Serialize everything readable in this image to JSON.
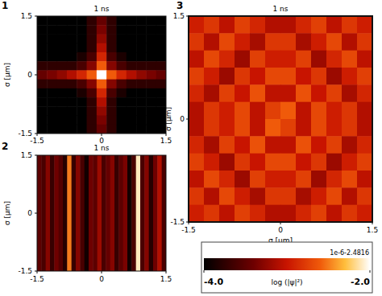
{
  "chart_data": [
    {
      "type": "heatmap",
      "panel_label": "1",
      "title": "1 ns",
      "ylabel": "σ [μm]",
      "xlim": [
        -1.5,
        1.5
      ],
      "ylim": [
        -1.5,
        1.5
      ],
      "xticks": [
        -1.5,
        0,
        1.5
      ],
      "yticks": [
        -1.5,
        0,
        1.5
      ],
      "cells": [
        [
          -4,
          -4,
          -4,
          -4,
          -4,
          -3.75,
          -3.45,
          -3.75,
          -4,
          -4,
          -4,
          -4,
          -4
        ],
        [
          -4,
          -4,
          -4,
          -4,
          -4,
          -3.75,
          -3.35,
          -3.75,
          -4,
          -4,
          -4,
          -4,
          -4
        ],
        [
          -4,
          -4,
          -4,
          -4,
          -4,
          -3.75,
          -3.25,
          -3.75,
          -4,
          -4,
          -4,
          -4,
          -4
        ],
        [
          -4,
          -4,
          -4,
          -4,
          -4,
          -3.75,
          -3.1,
          -3.75,
          -4,
          -4,
          -4,
          -4,
          -4
        ],
        [
          -4,
          -4,
          -4,
          -4,
          -3.85,
          -3.6,
          -2.9,
          -3.6,
          -3.85,
          -4,
          -4,
          -4,
          -4
        ],
        [
          -3.75,
          -3.75,
          -3.75,
          -3.75,
          -3.6,
          -3.3,
          -2.6,
          -3.3,
          -3.6,
          -3.75,
          -3.75,
          -3.75,
          -3.75
        ],
        [
          -3.45,
          -3.35,
          -3.25,
          -3.1,
          -2.9,
          -2.6,
          -2.0,
          -2.6,
          -2.9,
          -3.1,
          -3.25,
          -3.35,
          -3.45
        ],
        [
          -3.75,
          -3.75,
          -3.75,
          -3.75,
          -3.6,
          -3.3,
          -2.6,
          -3.3,
          -3.6,
          -3.75,
          -3.75,
          -3.75,
          -3.75
        ],
        [
          -4,
          -4,
          -4,
          -4,
          -3.85,
          -3.6,
          -2.9,
          -3.6,
          -3.85,
          -4,
          -4,
          -4,
          -4
        ],
        [
          -4,
          -4,
          -4,
          -4,
          -4,
          -3.75,
          -3.1,
          -3.75,
          -4,
          -4,
          -4,
          -4,
          -4
        ],
        [
          -4,
          -4,
          -4,
          -4,
          -4,
          -3.75,
          -3.25,
          -3.75,
          -4,
          -4,
          -4,
          -4,
          -4
        ],
        [
          -4,
          -4,
          -4,
          -4,
          -4,
          -3.75,
          -3.35,
          -3.75,
          -4,
          -4,
          -4,
          -4,
          -4
        ],
        [
          -4,
          -4,
          -4,
          -4,
          -4,
          -3.75,
          -3.45,
          -3.75,
          -4,
          -4,
          -4,
          -4,
          -4
        ]
      ]
    },
    {
      "type": "heatmap",
      "panel_label": "2",
      "title": "1 ns",
      "ylabel": "σ [μm]",
      "xlim": [
        -1.5,
        1.5
      ],
      "ylim": [
        -1.5,
        1.5
      ],
      "xticks": [
        -1.5,
        0,
        1.5
      ],
      "yticks": [
        -1.5,
        0,
        1.5
      ],
      "cells": [
        [
          -3.5,
          -3.6,
          -3.3,
          -3.7,
          -3.4,
          -3.55,
          -3.8,
          -2.5,
          -3.7,
          -3.3,
          -3.6,
          -3.9,
          -3.4,
          -3.5,
          -3.2,
          -3.6,
          -3.45,
          -3.3,
          -3.7,
          -3.5,
          -3.35,
          -3.9,
          -3.6,
          -2.1,
          -3.6,
          -3.3,
          -3.8,
          -3.4,
          -3.1,
          -3.6
        ]
      ]
    },
    {
      "type": "heatmap",
      "panel_label": "3",
      "title": "1 ns",
      "xlabel": "σ [μm]",
      "ylabel": "σ [μm]",
      "xlim": [
        -1.5,
        1.5
      ],
      "ylim": [
        -1.5,
        1.5
      ],
      "xticks": [
        -1.5,
        0,
        1.5
      ],
      "yticks": [
        -1.5,
        0,
        1.5
      ],
      "cells": [
        [
          -2.95,
          -2.8,
          -3.05,
          -2.75,
          -2.9,
          -3.1,
          -3.1,
          -2.9,
          -2.75,
          -3.05,
          -2.8,
          -2.95
        ],
        [
          -2.8,
          -3.1,
          -2.7,
          -2.95,
          -3.15,
          -2.8,
          -2.8,
          -3.15,
          -2.95,
          -2.7,
          -3.1,
          -2.8
        ],
        [
          -3.05,
          -2.7,
          -2.9,
          -3.2,
          -2.75,
          -2.95,
          -2.95,
          -2.75,
          -3.2,
          -2.9,
          -2.7,
          -3.05
        ],
        [
          -2.75,
          -2.95,
          -3.2,
          -2.8,
          -3.0,
          -2.7,
          -2.7,
          -3.0,
          -2.8,
          -3.2,
          -2.95,
          -2.75
        ],
        [
          -2.9,
          -3.15,
          -2.75,
          -3.0,
          -2.65,
          -3.05,
          -3.05,
          -2.65,
          -3.0,
          -2.75,
          -3.15,
          -2.9
        ],
        [
          -3.1,
          -2.8,
          -2.95,
          -2.7,
          -3.05,
          -2.75,
          -2.6,
          -3.05,
          -2.7,
          -2.95,
          -2.8,
          -3.1
        ],
        [
          -3.1,
          -2.8,
          -2.95,
          -2.7,
          -3.05,
          -2.6,
          -2.75,
          -3.05,
          -2.7,
          -2.95,
          -2.8,
          -3.1
        ],
        [
          -2.9,
          -3.15,
          -2.75,
          -3.0,
          -2.65,
          -3.05,
          -3.05,
          -2.65,
          -3.0,
          -2.75,
          -3.15,
          -2.9
        ],
        [
          -2.75,
          -2.95,
          -3.2,
          -2.8,
          -3.0,
          -2.7,
          -2.7,
          -3.0,
          -2.8,
          -3.2,
          -2.95,
          -2.75
        ],
        [
          -3.05,
          -2.7,
          -2.9,
          -3.2,
          -2.75,
          -2.95,
          -2.95,
          -2.75,
          -3.2,
          -2.9,
          -2.7,
          -3.05
        ],
        [
          -2.8,
          -3.1,
          -2.7,
          -2.95,
          -3.15,
          -2.8,
          -2.8,
          -3.15,
          -2.95,
          -2.7,
          -3.1,
          -2.8
        ],
        [
          -2.95,
          -2.8,
          -3.05,
          -2.75,
          -2.9,
          -3.1,
          -3.1,
          -2.9,
          -2.75,
          -3.05,
          -2.8,
          -2.95
        ]
      ],
      "colorbar": {
        "range": [
          -4,
          -2
        ],
        "ticks": [
          {
            "value": -4,
            "label": "-4.0"
          },
          {
            "value": -2,
            "label": "-2.0"
          }
        ],
        "label": "log (|ψ|²)",
        "offset_label": "1e-6-2.4816"
      }
    }
  ]
}
